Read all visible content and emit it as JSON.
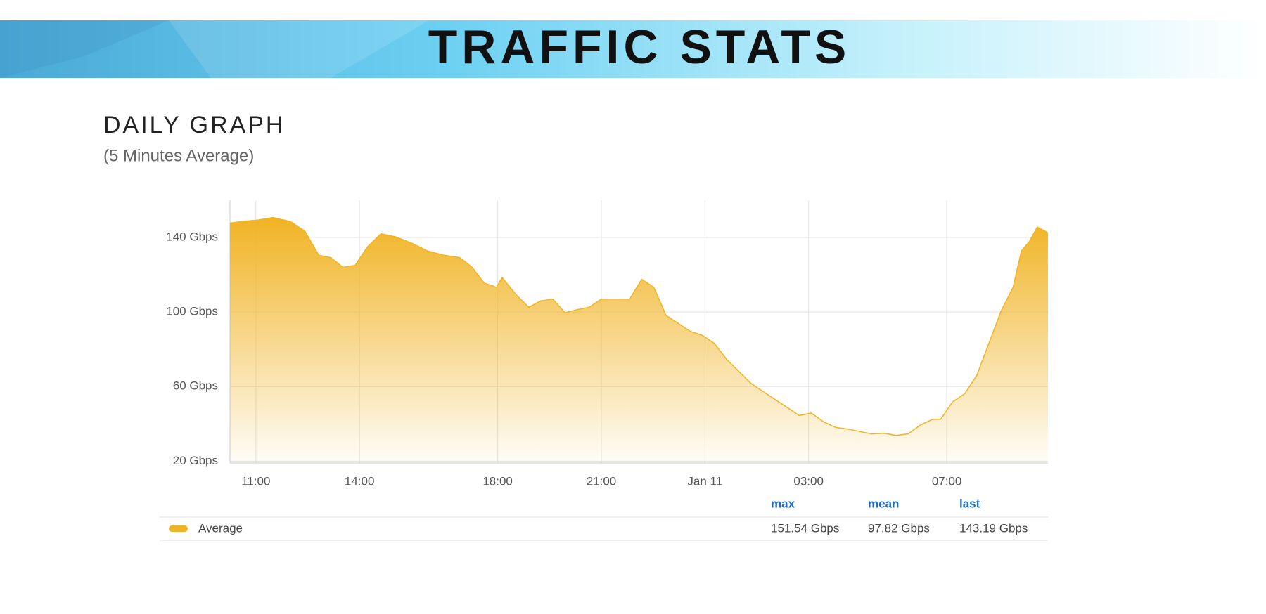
{
  "header": {
    "title": "TRAFFIC STATS"
  },
  "section": {
    "title": "DAILY GRAPH",
    "subtitle": "(5 Minutes Average)"
  },
  "chart_data": {
    "type": "area",
    "x": [
      10.25,
      10.6,
      11.07,
      11.49,
      12.0,
      12.42,
      12.82,
      13.17,
      13.52,
      13.87,
      14.22,
      14.62,
      15.04,
      15.51,
      15.98,
      16.44,
      16.91,
      17.26,
      17.61,
      17.96,
      18.13,
      18.55,
      18.9,
      19.25,
      19.6,
      19.95,
      20.3,
      20.65,
      21.0,
      21.47,
      21.82,
      22.17,
      22.52,
      22.87,
      23.22,
      23.57,
      23.92,
      24.27,
      24.63,
      24.98,
      25.33,
      25.68,
      26.03,
      26.38,
      26.73,
      27.08,
      27.43,
      27.78,
      28.13,
      28.48,
      28.83,
      29.18,
      29.53,
      29.88,
      30.24,
      30.59,
      30.82,
      31.17,
      31.52,
      31.87,
      32.22,
      32.57,
      32.92,
      33.16,
      33.39,
      33.62,
      33.93
    ],
    "series": [
      {
        "name": "Average",
        "color": "#f0b323",
        "values": [
          147.7,
          148.6,
          149.4,
          150.7,
          148.6,
          143.4,
          130.5,
          129.2,
          124,
          125,
          134.8,
          142,
          140.4,
          137,
          132.7,
          130.5,
          129.2,
          124,
          115.5,
          113.3,
          118.5,
          109,
          102.6,
          106,
          106.9,
          99.6,
          101.3,
          102.6,
          106.9,
          106.9,
          106.9,
          117.6,
          113.3,
          98.3,
          94,
          89.7,
          87.5,
          83.2,
          74.6,
          68.2,
          61.7,
          57.4,
          53.1,
          48.8,
          44.5,
          45.8,
          41.1,
          38.1,
          37.2,
          35.9,
          34.6,
          35,
          33.8,
          34.6,
          39.4,
          42.4,
          42.4,
          51.8,
          56.1,
          66,
          83.2,
          100.4,
          113.3,
          132.7,
          137.8,
          145.6,
          142.5
        ]
      }
    ],
    "xlim": [
      10.25,
      33.93
    ],
    "xticks": [
      {
        "value": 11,
        "label": "11:00"
      },
      {
        "value": 14,
        "label": "14:00"
      },
      {
        "value": 18,
        "label": "18:00"
      },
      {
        "value": 21,
        "label": "21:00"
      },
      {
        "value": 24,
        "label": "Jan 11"
      },
      {
        "value": 27,
        "label": "03:00"
      },
      {
        "value": 31,
        "label": "07:00"
      }
    ],
    "ylim": [
      19,
      160
    ],
    "yticks": [
      {
        "value": 20,
        "label": "20 Gbps"
      },
      {
        "value": 60,
        "label": "60 Gbps"
      },
      {
        "value": 100,
        "label": "100 Gbps"
      },
      {
        "value": 140,
        "label": "140 Gbps"
      }
    ],
    "grid": true
  },
  "legend_table": {
    "headers": [
      "max",
      "mean",
      "last"
    ],
    "values": [
      "151.54 Gbps",
      "97.82 Gbps",
      "143.19 Gbps"
    ]
  }
}
